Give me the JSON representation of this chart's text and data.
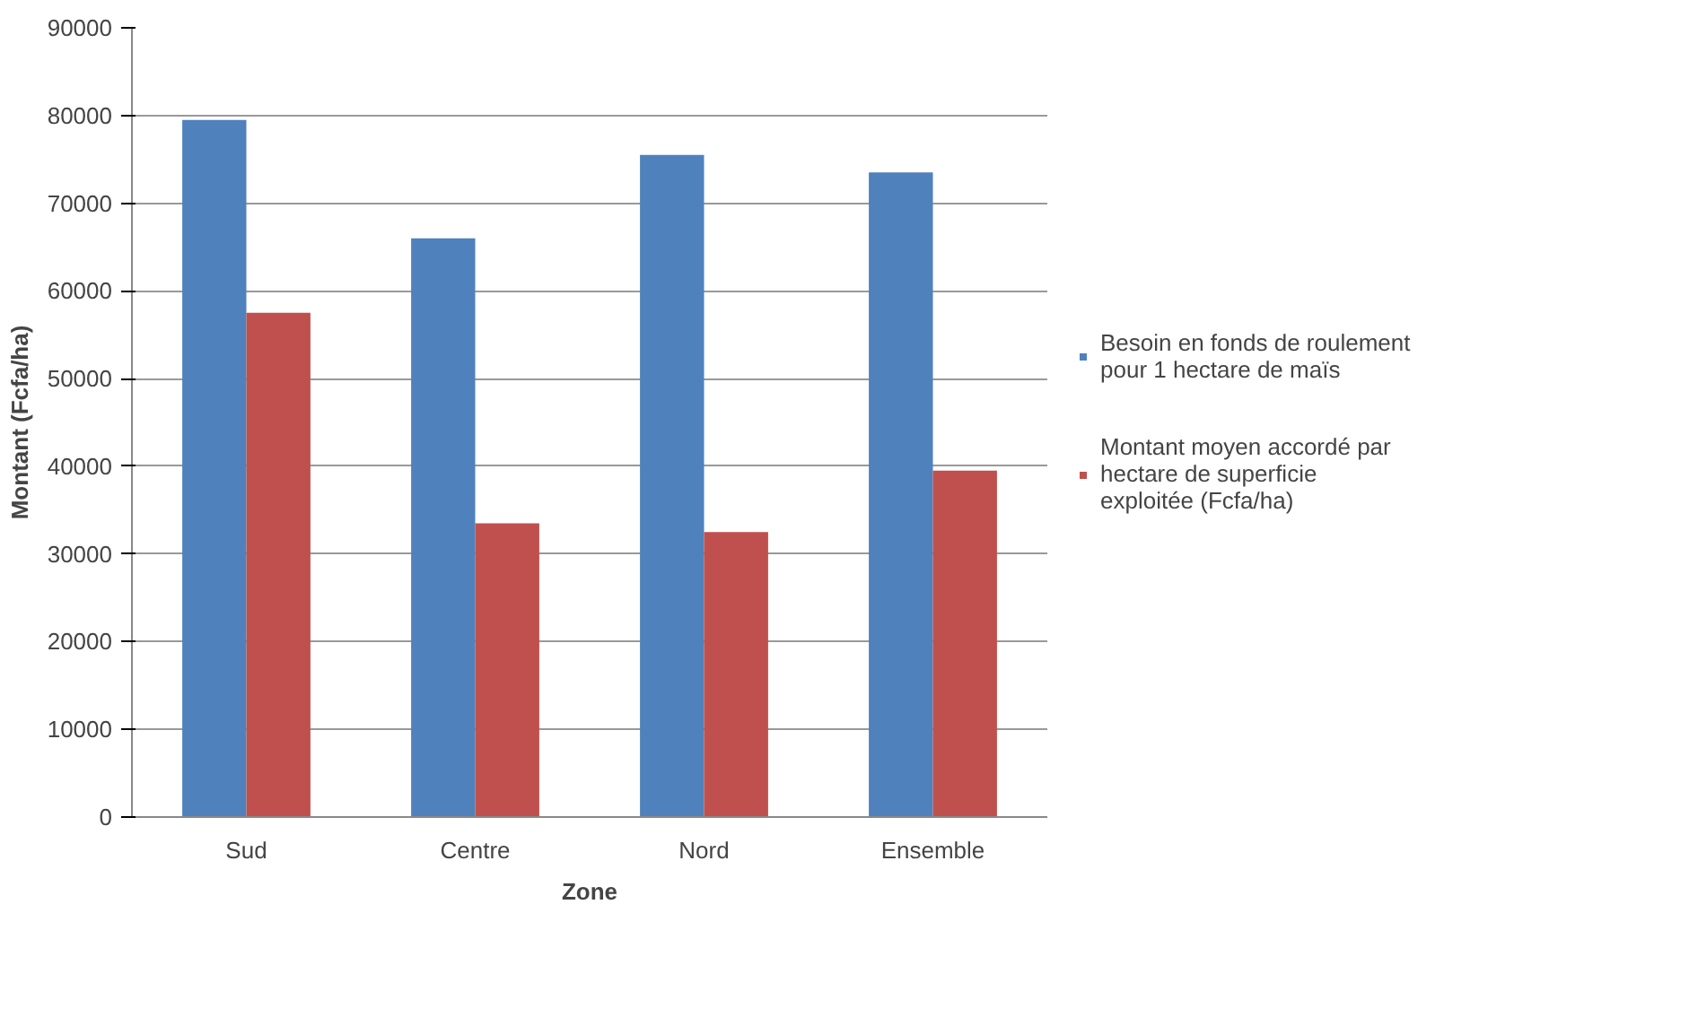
{
  "chart_data": {
    "type": "bar",
    "xlabel": "Zone",
    "ylabel": "Montant (Fcfa/ha)",
    "categories": [
      "Sud",
      "Centre",
      "Nord",
      "Ensemble"
    ],
    "series": [
      {
        "name": "Besoin en fonds de roulement pour 1 hectare de maïs",
        "color": "#4f81bd",
        "values": [
          79500,
          66000,
          75500,
          73500
        ]
      },
      {
        "name": "Montant moyen accordé par hectare de superficie exploitée (Fcfa/ha)",
        "color": "#c0504d",
        "values": [
          57500,
          33500,
          32500,
          39500
        ]
      }
    ],
    "ylim": [
      0,
      90000
    ],
    "yticks": [
      0,
      10000,
      20000,
      30000,
      40000,
      50000,
      60000,
      70000,
      80000,
      90000
    ],
    "grid": "y",
    "legend": "right"
  }
}
